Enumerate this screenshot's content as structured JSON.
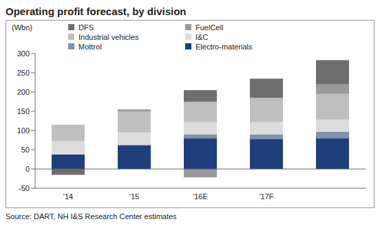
{
  "chart_data": {
    "type": "bar",
    "title": "Operating profit forecast, by division",
    "y_label": "(Wbn)",
    "annotations": [
      "Source: DART, NH I&S Research Center estimates"
    ],
    "categories": [
      "'14",
      "'15",
      "'16E",
      "'17F",
      null
    ],
    "stacked": true,
    "grid": false,
    "legend": "upper left",
    "ylim": [
      -50,
      300
    ],
    "yticks": [
      -50,
      0,
      50,
      100,
      150,
      200,
      250,
      300
    ],
    "series": [
      {
        "name": "DFS",
        "color": "#6e6e6e",
        "values": [
          -15,
          0,
          30,
          50,
          63
        ]
      },
      {
        "name": "FuelCell",
        "color": "#9a9a9a",
        "values": [
          0,
          5,
          -22,
          0,
          25
        ]
      },
      {
        "name": "Industrial vehicles",
        "color": "#bfbfbf",
        "values": [
          43,
          55,
          53,
          63,
          67
        ]
      },
      {
        "name": "I&C",
        "color": "#dcdcdc",
        "values": [
          34,
          33,
          32,
          32,
          31
        ]
      },
      {
        "name": "Mottrol",
        "color": "#7f93ad",
        "values": [
          0,
          0,
          10,
          12,
          17
        ]
      },
      {
        "name": "Electro-materials",
        "color": "#1f3e7c",
        "values": [
          38,
          62,
          80,
          78,
          80
        ]
      }
    ]
  }
}
